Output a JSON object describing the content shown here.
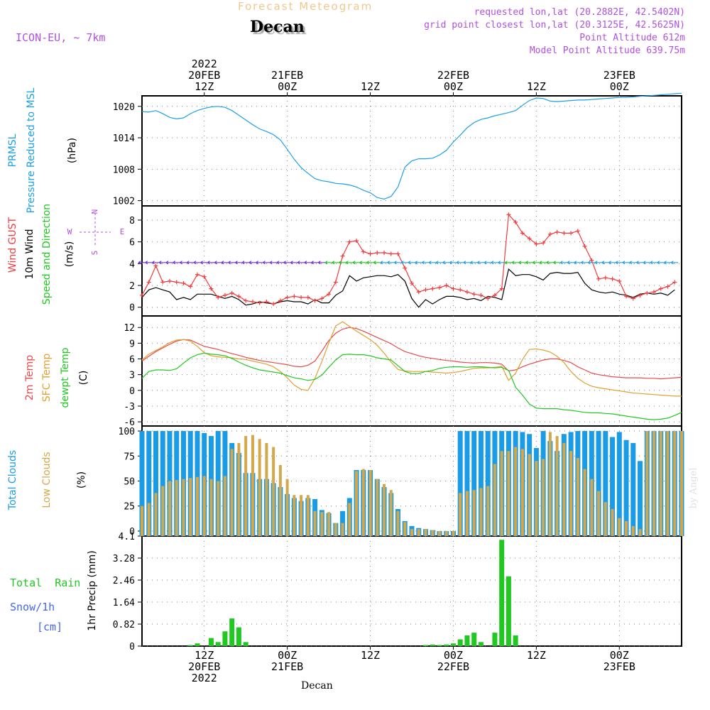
{
  "header": {
    "subtitle": "Forecast Meteogram",
    "title": "Decan",
    "model": "ICON-EU, ~ 7km",
    "requested": "requested lon,lat (20.2882E, 42.5402N)",
    "gridpoint": "grid point closest lon,lat (20.3125E, 42.5625N)",
    "altitude": "Point Altitude 612m",
    "model_altitude": "Model Point Altitude 639.75m",
    "footer": "Decan",
    "credit": "by Angel"
  },
  "time_axis": {
    "top": [
      {
        "h": 12,
        "lines": [
          "2022",
          "20FEB",
          "12Z"
        ]
      },
      {
        "h": 24,
        "lines": [
          "21FEB",
          "00Z"
        ]
      },
      {
        "h": 36,
        "lines": [
          "12Z"
        ]
      },
      {
        "h": 48,
        "lines": [
          "22FEB",
          "00Z"
        ]
      },
      {
        "h": 60,
        "lines": [
          "12Z"
        ]
      },
      {
        "h": 72,
        "lines": [
          "23FEB",
          "00Z"
        ]
      }
    ],
    "bottom": [
      {
        "h": 12,
        "lines": [
          "12Z",
          "20FEB",
          "2022"
        ]
      },
      {
        "h": 24,
        "lines": [
          "00Z",
          "21FEB"
        ]
      },
      {
        "h": 36,
        "lines": [
          "12Z"
        ]
      },
      {
        "h": 48,
        "lines": [
          "00Z",
          "22FEB"
        ]
      },
      {
        "h": 60,
        "lines": [
          "12Z"
        ]
      },
      {
        "h": 72,
        "lines": [
          "00Z",
          "23FEB"
        ]
      }
    ]
  },
  "colors": {
    "pressure": "#1ca0e6",
    "gust": "#f03c3c",
    "wind": "#000000",
    "windarrow": "#1ec81e",
    "t2m": "#e84a4a",
    "sfc": "#e0a032",
    "dew": "#22c822",
    "total_cloud": "#1a9be6",
    "low_cloud": "#d4a84a",
    "rain": "#22c822",
    "snow": "#4466ee",
    "purple": "#b050e0",
    "grid": "#808080"
  },
  "panels": [
    {
      "id": "pressure",
      "labels": [
        {
          "text": "PRMSL",
          "color": "#1ca0e6"
        },
        {
          "text": "Pressure Reduced to MSL",
          "color": "#1ca0e6"
        },
        {
          "text": "(hPa)",
          "color": "#000000"
        }
      ],
      "yticks": [
        1002,
        1008,
        1014,
        1020
      ]
    },
    {
      "id": "wind",
      "labels": [
        {
          "text": "Wind GUST",
          "color": "#f03c3c"
        },
        {
          "text": "10m Wind",
          "color": "#000000"
        },
        {
          "text": "Speed and Direction",
          "color": "#1ec81e"
        },
        {
          "text": "(m/s)",
          "color": "#000000"
        }
      ],
      "compass": {
        "w": "W",
        "e": "E",
        "n": "N",
        "s": "S"
      },
      "yticks": [
        0,
        2,
        4,
        6,
        8
      ]
    },
    {
      "id": "temp",
      "labels": [
        {
          "text": "2m Temp",
          "color": "#e84a4a"
        },
        {
          "text": "SFC Temp",
          "color": "#e0a032"
        },
        {
          "text": "dewpt Temp",
          "color": "#22c822"
        },
        {
          "text": "(C)",
          "color": "#000000"
        }
      ],
      "yticks": [
        -6,
        -3,
        0,
        3,
        6,
        9,
        12
      ]
    },
    {
      "id": "clouds",
      "labels": [
        {
          "text": "Total Clouds",
          "color": "#1a9be6"
        },
        {
          "text": "Low Clouds",
          "color": "#d4a84a"
        },
        {
          "text": "(%)",
          "color": "#000000"
        }
      ],
      "yticks": [
        0,
        25,
        50,
        75,
        100
      ]
    },
    {
      "id": "precip",
      "labels": [
        {
          "text": "Total  Rain",
          "color": "#22c822"
        },
        {
          "text": "Snow/1h",
          "color": "#4466ee"
        },
        {
          "text": "[cm]",
          "color": "#4466ee"
        },
        {
          "text": "1hr Precip (mm)",
          "color": "#000000"
        }
      ],
      "yticks": [
        "0",
        "0.82",
        "1.64",
        "2.46",
        "3.28",
        "4.1"
      ]
    }
  ],
  "chart_data": {
    "type": "line",
    "title": "Forecast Meteogram - Decan",
    "x_unit": "hours from 20FEB 2022 03Z",
    "x_range": [
      3,
      81
    ],
    "pressure": {
      "ylim": [
        1001,
        1022
      ],
      "h": [
        3,
        4,
        5,
        6,
        7,
        8,
        9,
        10,
        11,
        12,
        13,
        14,
        15,
        16,
        17,
        18,
        19,
        20,
        21,
        22,
        23,
        24,
        25,
        26,
        27,
        28,
        29,
        30,
        31,
        32,
        33,
        34,
        35,
        36,
        37,
        38,
        39,
        40,
        41,
        42,
        43,
        44,
        45,
        46,
        47,
        48,
        49,
        50,
        51,
        52,
        53,
        54,
        55,
        56,
        57,
        58,
        59,
        60,
        61,
        62,
        63,
        64,
        65,
        66,
        67,
        68,
        69,
        70,
        71,
        72,
        73,
        74,
        75,
        76,
        77,
        78,
        79,
        80,
        81
      ],
      "v": [
        1019.0,
        1018.9,
        1019.2,
        1018.6,
        1017.9,
        1017.6,
        1017.8,
        1018.6,
        1019.2,
        1019.6,
        1019.9,
        1020.0,
        1019.8,
        1019.2,
        1018.3,
        1017.4,
        1016.5,
        1015.7,
        1015.2,
        1014.6,
        1013.6,
        1011.8,
        1009.9,
        1008.3,
        1007.2,
        1006.2,
        1005.8,
        1005.6,
        1005.3,
        1005.2,
        1005.0,
        1004.6,
        1004.0,
        1003.5,
        1002.6,
        1002.3,
        1002.8,
        1004.6,
        1008.4,
        1009.6,
        1010.0,
        1010.0,
        1010.1,
        1010.7,
        1011.6,
        1013.2,
        1014.5,
        1015.9,
        1016.9,
        1017.5,
        1017.8,
        1018.2,
        1018.5,
        1018.8,
        1019.2,
        1020.2,
        1021.1,
        1021.6,
        1021.5,
        1021.0,
        1020.9,
        1021.0,
        1021.1,
        1021.2,
        1021.2,
        1021.3,
        1021.4,
        1021.5,
        1021.6,
        1021.7,
        1021.7,
        1021.8,
        1021.9,
        1022.0,
        1022.1,
        1022.2,
        1022.3,
        1022.4,
        1022.5
      ]
    },
    "wind": {
      "ylim": [
        -0.8,
        9.3
      ],
      "h": [
        3,
        4,
        5,
        6,
        7,
        8,
        9,
        10,
        11,
        12,
        13,
        14,
        15,
        16,
        17,
        18,
        19,
        20,
        21,
        22,
        23,
        24,
        25,
        26,
        27,
        28,
        29,
        30,
        31,
        32,
        33,
        34,
        35,
        36,
        37,
        38,
        39,
        40,
        41,
        42,
        43,
        44,
        45,
        46,
        47,
        48,
        49,
        50,
        51,
        52,
        53,
        54,
        55,
        56,
        57,
        58,
        59,
        60,
        61,
        62,
        63,
        64,
        65,
        66,
        67,
        68,
        69,
        70,
        71,
        72,
        73,
        74,
        75,
        76,
        77,
        78,
        79,
        80
      ],
      "gust": [
        1.1,
        2.3,
        3.8,
        2.3,
        2.4,
        2.3,
        2.2,
        1.9,
        3.0,
        2.8,
        1.7,
        0.9,
        1.1,
        1.3,
        1.0,
        0.6,
        0.5,
        0.4,
        0.5,
        0.3,
        0.6,
        0.9,
        1.0,
        0.9,
        0.9,
        0.6,
        0.8,
        1.2,
        2.3,
        4.7,
        6.0,
        6.1,
        5.1,
        4.9,
        5.0,
        5.0,
        4.9,
        4.9,
        3.6,
        2.2,
        1.4,
        1.6,
        1.7,
        1.8,
        2.0,
        1.7,
        1.6,
        1.4,
        1.2,
        1.1,
        0.8,
        1.1,
        1.7,
        8.5,
        7.8,
        6.8,
        6.3,
        5.8,
        5.9,
        6.7,
        6.9,
        6.8,
        6.8,
        7.0,
        5.6,
        4.3,
        2.6,
        2.7,
        2.6,
        2.4,
        1.0,
        0.8,
        1.1,
        1.3,
        1.4,
        1.7,
        1.9,
        2.3
      ],
      "wind": [
        0.9,
        1.6,
        1.8,
        1.6,
        1.4,
        0.7,
        0.9,
        0.7,
        1.2,
        1.2,
        1.2,
        1.0,
        0.8,
        1.0,
        0.7,
        0.2,
        0.3,
        0.5,
        0.4,
        0.3,
        0.5,
        0.6,
        0.5,
        0.5,
        0.3,
        0.7,
        0.4,
        0.4,
        1.1,
        1.5,
        2.9,
        2.4,
        2.7,
        2.8,
        2.9,
        2.9,
        2.8,
        3.0,
        2.4,
        0.8,
        0.0,
        0.7,
        0.3,
        0.7,
        1.0,
        1.0,
        0.9,
        0.7,
        0.8,
        0.6,
        1.0,
        0.9,
        0.7,
        3.5,
        2.9,
        3.0,
        3.0,
        2.8,
        2.5,
        3.1,
        3.2,
        3.1,
        3.1,
        3.2,
        2.2,
        1.6,
        1.4,
        1.3,
        1.4,
        1.2,
        1.1,
        0.9,
        1.2,
        1.3,
        1.2,
        1.3,
        1.1,
        1.6
      ]
    },
    "temp": {
      "ylim": [
        -6.8,
        14.2
      ],
      "h": [
        3,
        4,
        5,
        6,
        7,
        8,
        9,
        10,
        11,
        12,
        13,
        14,
        15,
        16,
        17,
        18,
        19,
        20,
        21,
        22,
        23,
        24,
        25,
        26,
        27,
        28,
        29,
        30,
        31,
        32,
        33,
        34,
        35,
        36,
        37,
        38,
        39,
        40,
        41,
        42,
        43,
        44,
        45,
        46,
        47,
        48,
        49,
        50,
        51,
        52,
        53,
        54,
        55,
        56,
        57,
        58,
        59,
        60,
        61,
        62,
        63,
        64,
        65,
        66,
        67,
        68,
        69,
        70,
        71,
        72,
        73,
        74,
        75,
        76,
        77,
        78,
        79,
        80,
        81
      ],
      "t2m": [
        5.6,
        6.5,
        7.4,
        8.1,
        8.8,
        9.4,
        9.7,
        9.6,
        9.0,
        8.4,
        8.1,
        7.8,
        7.4,
        7.0,
        6.7,
        6.3,
        6.0,
        5.7,
        5.5,
        5.3,
        5.1,
        4.9,
        4.6,
        4.5,
        4.8,
        5.6,
        7.5,
        9.5,
        10.9,
        11.7,
        12.0,
        11.8,
        11.3,
        10.7,
        10.1,
        9.5,
        8.9,
        8.1,
        7.4,
        7.0,
        6.6,
        6.3,
        6.1,
        5.9,
        5.7,
        5.6,
        5.4,
        5.3,
        5.2,
        5.3,
        5.3,
        5.2,
        5.0,
        3.7,
        3.9,
        4.5,
        5.0,
        5.4,
        5.8,
        6.0,
        6.0,
        5.7,
        5.3,
        4.5,
        3.9,
        3.3,
        3.0,
        2.8,
        2.6,
        2.5,
        2.4,
        2.4,
        2.4,
        2.3,
        2.3,
        2.2,
        2.3,
        2.4,
        2.5
      ],
      "sfc": [
        5.8,
        6.9,
        7.6,
        8.3,
        9.1,
        9.6,
        9.7,
        9.4,
        8.4,
        7.2,
        6.6,
        6.4,
        6.3,
        6.2,
        6.0,
        5.9,
        5.6,
        5.3,
        5.0,
        4.5,
        3.6,
        2.4,
        1.0,
        0.2,
        0.0,
        2.3,
        5.5,
        9.0,
        12.3,
        13.1,
        12.2,
        11.3,
        10.5,
        9.7,
        8.6,
        7.1,
        5.4,
        4.0,
        3.7,
        3.6,
        3.6,
        3.6,
        3.5,
        3.4,
        3.3,
        3.4,
        3.6,
        3.9,
        4.2,
        4.3,
        4.3,
        4.4,
        4.6,
        1.9,
        3.3,
        5.9,
        7.8,
        7.9,
        7.7,
        7.3,
        6.5,
        5.3,
        3.6,
        2.3,
        1.4,
        0.8,
        0.5,
        0.3,
        0.1,
        -0.1,
        -0.3,
        -0.5,
        -0.6,
        -0.7,
        -0.8,
        -0.9,
        -1.0,
        -1.1,
        -1.1
      ],
      "dew": [
        2.3,
        3.6,
        3.9,
        3.9,
        3.8,
        4.1,
        5.2,
        6.2,
        6.8,
        7.1,
        6.9,
        6.8,
        6.6,
        6.1,
        5.4,
        4.8,
        4.3,
        3.9,
        3.7,
        3.5,
        3.3,
        2.8,
        2.4,
        2.2,
        1.9,
        2.1,
        2.9,
        4.4,
        5.8,
        6.8,
        6.9,
        6.8,
        6.8,
        6.6,
        6.2,
        6.0,
        5.8,
        4.7,
        3.6,
        3.2,
        3.2,
        3.6,
        3.8,
        4.2,
        4.4,
        4.5,
        4.5,
        4.4,
        4.5,
        4.5,
        4.4,
        4.3,
        4.4,
        3.8,
        0.6,
        -0.9,
        -2.6,
        -3.4,
        -3.5,
        -3.5,
        -3.5,
        -3.7,
        -3.8,
        -4.0,
        -4.2,
        -4.3,
        -4.3,
        -4.4,
        -4.5,
        -4.7,
        -4.9,
        -5.1,
        -5.3,
        -5.5,
        -5.6,
        -5.5,
        -5.3,
        -4.8,
        -4.2
      ]
    },
    "clouds": {
      "ylim": [
        -5,
        105
      ],
      "h": [
        3,
        4,
        5,
        6,
        7,
        8,
        9,
        10,
        11,
        12,
        13,
        14,
        15,
        16,
        17,
        18,
        19,
        20,
        21,
        22,
        23,
        24,
        25,
        26,
        27,
        28,
        29,
        30,
        31,
        32,
        33,
        34,
        35,
        36,
        37,
        38,
        39,
        40,
        41,
        42,
        43,
        44,
        45,
        46,
        47,
        48,
        49,
        50,
        51,
        52,
        53,
        54,
        55,
        56,
        57,
        58,
        59,
        60,
        61,
        62,
        63,
        64,
        65,
        66,
        67,
        68,
        69,
        70,
        71,
        72,
        73,
        74,
        75,
        76,
        77,
        78,
        79,
        80,
        81
      ],
      "total": [
        100,
        100,
        100,
        100,
        100,
        100,
        100,
        100,
        100,
        98,
        95,
        100,
        100,
        88,
        78,
        58,
        58,
        52,
        52,
        48,
        44,
        37,
        33,
        30,
        33,
        32,
        21,
        18,
        8,
        20,
        33,
        61,
        61,
        61,
        52,
        44,
        38,
        22,
        10,
        5,
        3,
        2,
        1,
        0,
        0,
        0,
        100,
        100,
        100,
        100,
        100,
        100,
        100,
        100,
        100,
        99,
        97,
        83,
        100,
        90,
        80,
        97,
        99,
        100,
        100,
        100,
        100,
        100,
        94,
        99,
        91,
        88,
        70,
        100,
        100,
        100,
        100,
        100,
        100
      ],
      "low": [
        25,
        28,
        38,
        45,
        50,
        51,
        52,
        53,
        54,
        55,
        52,
        50,
        55,
        82,
        88,
        95,
        96,
        92,
        88,
        84,
        66,
        52,
        36,
        36,
        36,
        20,
        19,
        19,
        8,
        8,
        28,
        60,
        62,
        61,
        52,
        47,
        41,
        20,
        9,
        2,
        2,
        2,
        1,
        0,
        0,
        0,
        38,
        40,
        41,
        43,
        45,
        67,
        80,
        80,
        84,
        82,
        77,
        70,
        72,
        99,
        95,
        88,
        80,
        73,
        62,
        52,
        40,
        29,
        22,
        13,
        10,
        5,
        2,
        100,
        100,
        100,
        100,
        100,
        100
      ]
    },
    "precip": {
      "ylim": [
        0,
        4.1
      ],
      "h": [
        10,
        11,
        12,
        13,
        14,
        15,
        16,
        17,
        18,
        19,
        44,
        45,
        46,
        47,
        48,
        49,
        50,
        51,
        52,
        53,
        54,
        55,
        56,
        57,
        58
      ],
      "rain": [
        0.04,
        0.1,
        0.0,
        0.3,
        0.15,
        0.55,
        1.03,
        0.7,
        0.15,
        0.0,
        0.04,
        0.06,
        0.04,
        0.06,
        0.1,
        0.25,
        0.4,
        0.5,
        0.15,
        0.0,
        0.5,
        3.96,
        2.6,
        0.4,
        0.0
      ]
    }
  }
}
